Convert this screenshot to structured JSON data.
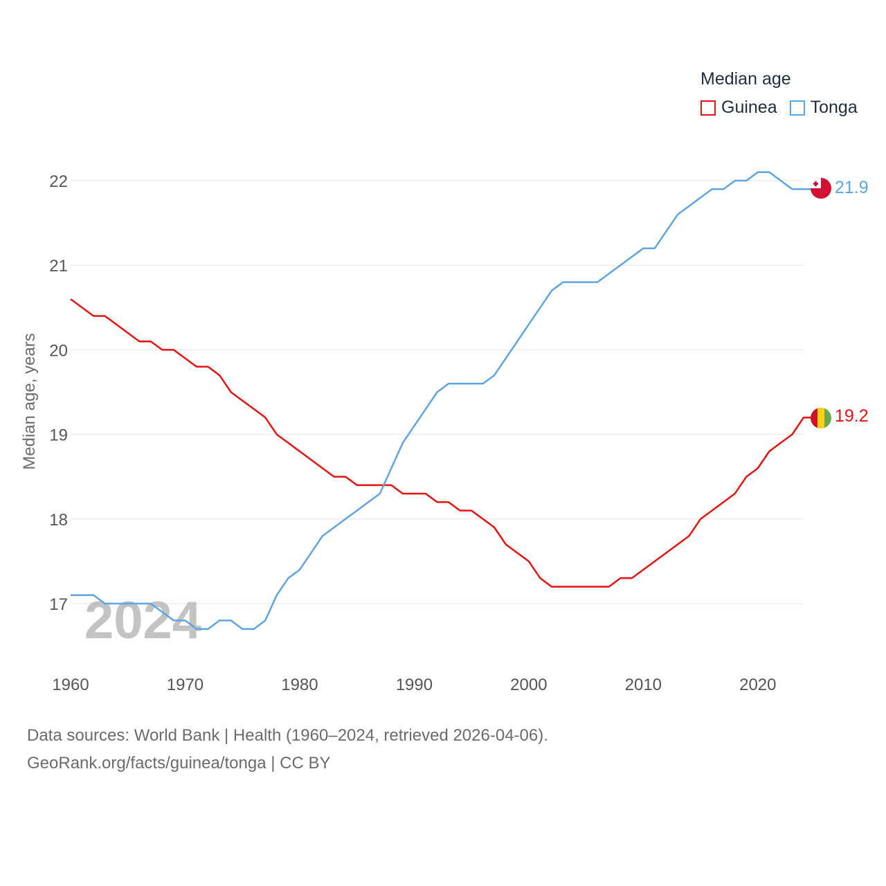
{
  "legend": {
    "title": "Median age",
    "items": [
      {
        "label": "Guinea",
        "color": "#e8110f"
      },
      {
        "label": "Tonga",
        "color": "#5da4e2"
      }
    ]
  },
  "watermark_year": "2024",
  "footer": {
    "line1": "Data sources: World Bank | Health (1960–2024, retrieved 2026-04-06).",
    "line2": "GeoRank.org/facts/guinea/tonga | CC BY"
  },
  "chart_data": {
    "type": "line",
    "title": "Median age",
    "xlabel": "",
    "ylabel": "Median age, years",
    "xlim": [
      1960,
      2024
    ],
    "ylim": [
      16.3,
      22.5
    ],
    "x_ticks": [
      "1960",
      "1970",
      "1980",
      "1990",
      "2000",
      "2010",
      "2020"
    ],
    "y_ticks": [
      "17",
      "18",
      "19",
      "20",
      "21",
      "22"
    ],
    "grid": true,
    "legend_position": "top-right",
    "x": [
      1960,
      1961,
      1962,
      1963,
      1964,
      1965,
      1966,
      1967,
      1968,
      1969,
      1970,
      1971,
      1972,
      1973,
      1974,
      1975,
      1976,
      1977,
      1978,
      1979,
      1980,
      1981,
      1982,
      1983,
      1984,
      1985,
      1986,
      1987,
      1988,
      1989,
      1990,
      1991,
      1992,
      1993,
      1994,
      1995,
      1996,
      1997,
      1998,
      1999,
      2000,
      2001,
      2002,
      2003,
      2004,
      2005,
      2006,
      2007,
      2008,
      2009,
      2010,
      2011,
      2012,
      2013,
      2014,
      2015,
      2016,
      2017,
      2018,
      2019,
      2020,
      2021,
      2022,
      2023,
      2024
    ],
    "series": [
      {
        "name": "Guinea",
        "color": "#e8110f",
        "end_label": "19.2",
        "values": [
          20.6,
          20.5,
          20.4,
          20.4,
          20.3,
          20.2,
          20.1,
          20.1,
          20.0,
          20.0,
          19.9,
          19.8,
          19.8,
          19.7,
          19.5,
          19.4,
          19.3,
          19.2,
          19.0,
          18.9,
          18.8,
          18.7,
          18.6,
          18.5,
          18.5,
          18.4,
          18.4,
          18.4,
          18.4,
          18.3,
          18.3,
          18.3,
          18.2,
          18.2,
          18.1,
          18.1,
          18.0,
          17.9,
          17.7,
          17.6,
          17.5,
          17.3,
          17.2,
          17.2,
          17.2,
          17.2,
          17.2,
          17.2,
          17.3,
          17.3,
          17.4,
          17.5,
          17.6,
          17.7,
          17.8,
          18.0,
          18.1,
          18.2,
          18.3,
          18.5,
          18.6,
          18.8,
          18.9,
          19.0,
          19.2
        ]
      },
      {
        "name": "Tonga",
        "color": "#5da4e2",
        "end_label": "21.9",
        "values": [
          17.1,
          17.1,
          17.1,
          17.0,
          17.0,
          17.0,
          17.0,
          17.0,
          16.9,
          16.8,
          16.8,
          16.7,
          16.7,
          16.8,
          16.8,
          16.7,
          16.7,
          16.8,
          17.1,
          17.3,
          17.4,
          17.6,
          17.8,
          17.9,
          18.0,
          18.1,
          18.2,
          18.3,
          18.6,
          18.9,
          19.1,
          19.3,
          19.5,
          19.6,
          19.6,
          19.6,
          19.6,
          19.7,
          19.9,
          20.1,
          20.3,
          20.5,
          20.7,
          20.8,
          20.8,
          20.8,
          20.8,
          20.9,
          21.0,
          21.1,
          21.2,
          21.2,
          21.4,
          21.6,
          21.7,
          21.8,
          21.9,
          21.9,
          22.0,
          22.0,
          22.1,
          22.1,
          22.0,
          21.9,
          21.9
        ]
      }
    ]
  }
}
